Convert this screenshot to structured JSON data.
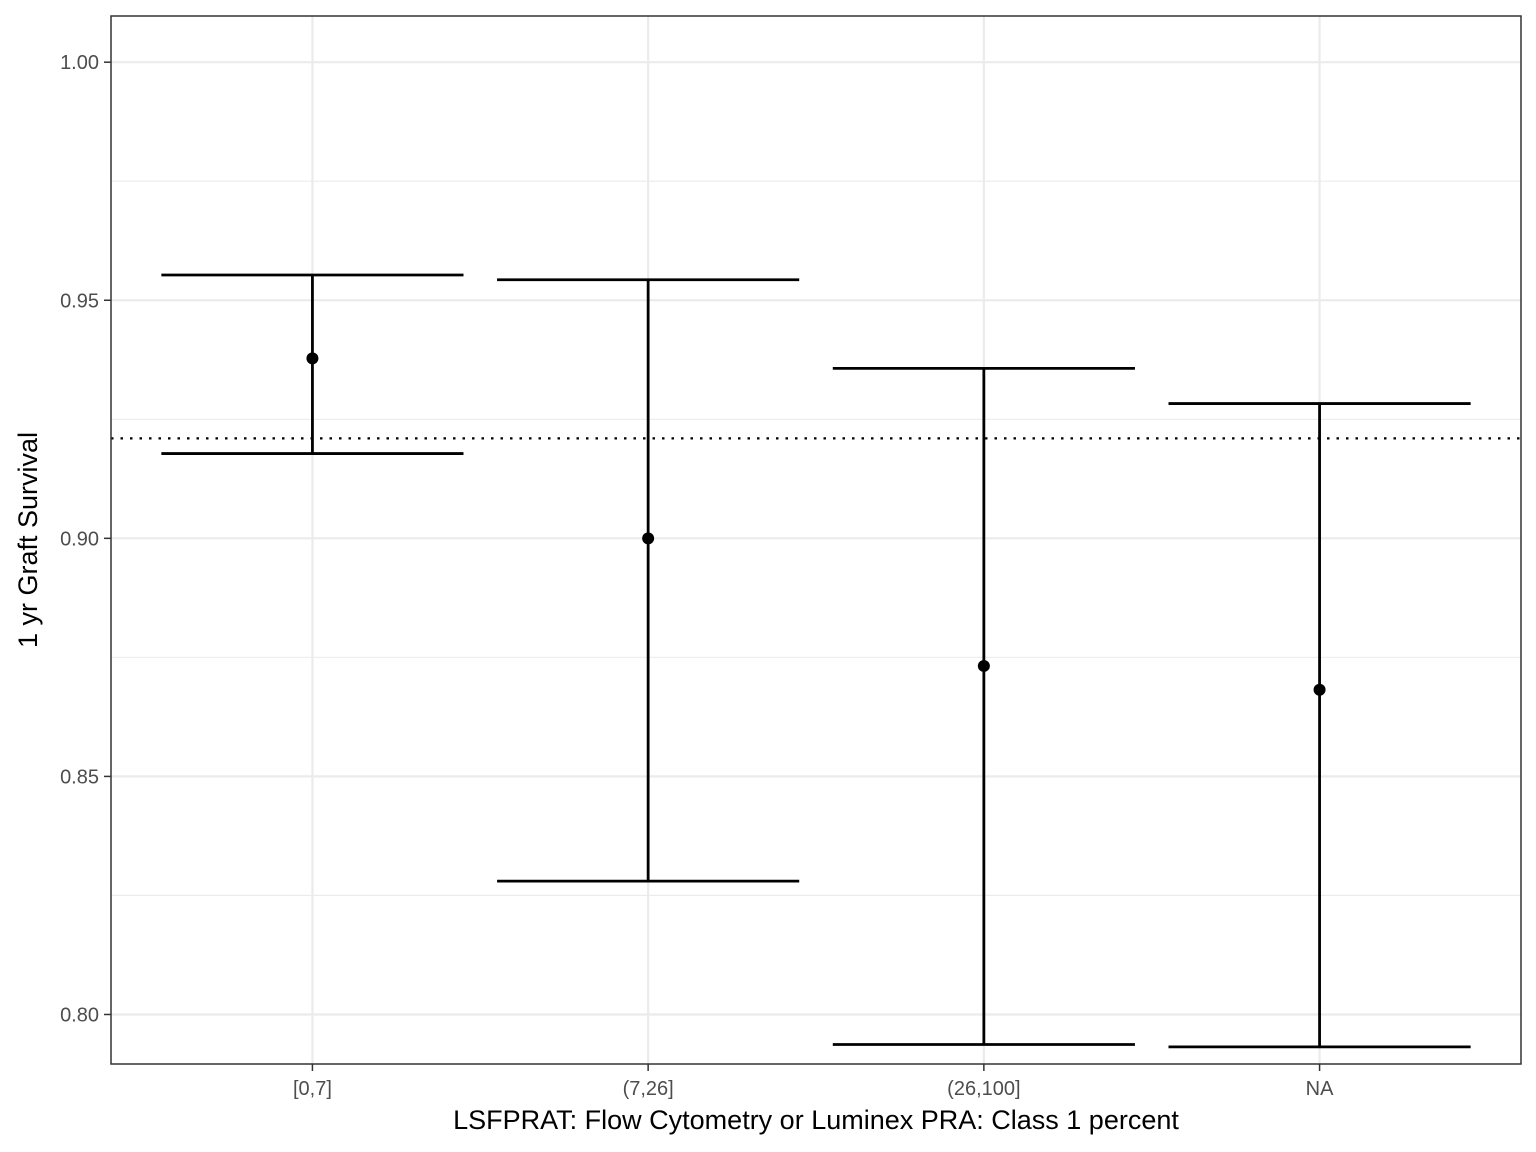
{
  "chart_data": {
    "type": "errorbar",
    "title": "",
    "xlabel": "LSFPRAT: Flow Cytometry or Luminex PRA: Class 1 percent",
    "ylabel": "1 yr Graft Survival",
    "categories": [
      "[0,7]",
      "(7,26]",
      "(26,100]",
      "NA"
    ],
    "estimates": [
      0.9378,
      0.9,
      0.8732,
      0.8682
    ],
    "lower": [
      0.9178,
      0.828,
      0.7937,
      0.7932
    ],
    "upper": [
      0.9553,
      0.9543,
      0.9357,
      0.9283
    ],
    "reference_line": 0.921,
    "reference_style": "dotted",
    "ylim": [
      0.7896,
      1.0097
    ],
    "yticks": [
      0.8,
      0.85,
      0.9,
      0.95,
      1.0
    ],
    "ytick_labels": [
      "0.80",
      "0.85",
      "0.90",
      "0.95",
      "1.00"
    ],
    "grid": true,
    "theme": "bw",
    "colors": {
      "marks": "#000000",
      "grid": "#ebebeb",
      "border": "#333333",
      "tick_text": "#4d4d4d"
    }
  }
}
